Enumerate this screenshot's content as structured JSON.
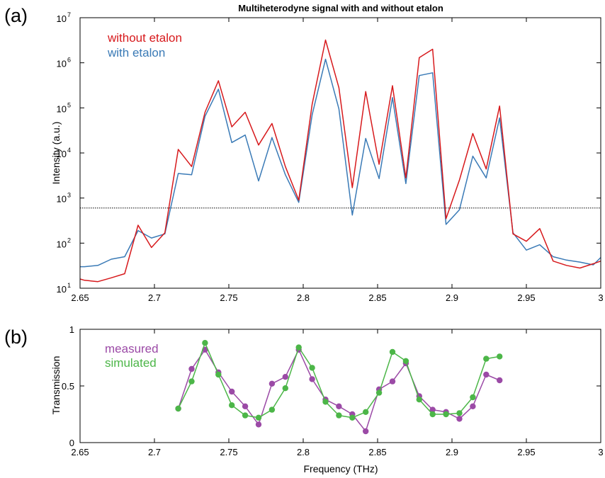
{
  "panel_labels": [
    "(a)",
    "(b)"
  ],
  "colors": {
    "without_etalon": "#d7191c",
    "with_etalon": "#3a7ab6",
    "measured": "#9b4aa6",
    "simulated": "#4cb648",
    "threshold": "#000000"
  },
  "chart_data": [
    {
      "type": "line",
      "title": "Multiheterodyne signal with and without etalon",
      "xlabel": "",
      "ylabel": "Intensity (a.u.)",
      "xlim": [
        2.65,
        3
      ],
      "ylim": [
        10,
        10000000
      ],
      "yscale": "log",
      "x_ticks": [
        "2.65",
        "2.7",
        "2.75",
        "2.8",
        "2.85",
        "2.9",
        "2.95",
        "3"
      ],
      "y_ticks": [
        {
          "base": "10",
          "exp": "1"
        },
        {
          "base": "10",
          "exp": "2"
        },
        {
          "base": "10",
          "exp": "3"
        },
        {
          "base": "10",
          "exp": "4"
        },
        {
          "base": "10",
          "exp": "5"
        },
        {
          "base": "10",
          "exp": "6"
        },
        {
          "base": "10",
          "exp": "7"
        }
      ],
      "legend_position": "top-left",
      "threshold_line": 600,
      "series": [
        {
          "name": "without etalon",
          "color_key": "without_etalon",
          "x": [
            2.65,
            2.653,
            2.662,
            2.671,
            2.68,
            2.689,
            2.698,
            2.707,
            2.716,
            2.725,
            2.734,
            2.743,
            2.752,
            2.761,
            2.77,
            2.779,
            2.788,
            2.797,
            2.806,
            2.815,
            2.824,
            2.833,
            2.842,
            2.851,
            2.86,
            2.869,
            2.878,
            2.887,
            2.896,
            2.905,
            2.914,
            2.923,
            2.932,
            2.941,
            2.95,
            2.959,
            2.968,
            2.977,
            2.986,
            2.995,
            3.0
          ],
          "y": [
            16,
            15,
            14,
            17,
            21,
            250,
            80,
            170,
            12000,
            5000,
            80000,
            400000,
            38000,
            80000,
            15000,
            45000,
            5000,
            900,
            120000,
            3200000,
            280000,
            1700,
            230000,
            5600,
            310000,
            2800,
            1300000,
            2000000,
            350,
            2500,
            27000,
            4400,
            110000,
            160,
            110,
            210,
            40,
            32,
            28,
            35,
            40
          ]
        },
        {
          "name": "with etalon",
          "color_key": "with_etalon",
          "x": [
            2.65,
            2.653,
            2.662,
            2.671,
            2.68,
            2.689,
            2.698,
            2.707,
            2.716,
            2.725,
            2.734,
            2.743,
            2.752,
            2.761,
            2.77,
            2.779,
            2.788,
            2.797,
            2.806,
            2.815,
            2.824,
            2.833,
            2.842,
            2.851,
            2.86,
            2.869,
            2.878,
            2.887,
            2.896,
            2.905,
            2.914,
            2.923,
            2.932,
            2.941,
            2.95,
            2.959,
            2.968,
            2.977,
            2.986,
            2.995,
            3.0
          ],
          "y": [
            30,
            30,
            32,
            44,
            50,
            190,
            130,
            160,
            3500,
            3300,
            65000,
            260000,
            17000,
            25000,
            2400,
            22000,
            3300,
            800,
            70000,
            1200000,
            95000,
            420,
            21000,
            2700,
            170000,
            2100,
            520000,
            600000,
            260,
            550,
            8500,
            2800,
            60000,
            170,
            70,
            92,
            50,
            42,
            38,
            33,
            48
          ]
        }
      ]
    },
    {
      "type": "line",
      "title": "",
      "xlabel": "Frequency (THz)",
      "ylabel": "Transmission",
      "xlim": [
        2.65,
        3
      ],
      "ylim": [
        0,
        1
      ],
      "x_ticks": [
        "2.65",
        "2.7",
        "2.75",
        "2.8",
        "2.85",
        "2.9",
        "2.95",
        "3"
      ],
      "y_ticks": [
        "0",
        "0.5",
        "1"
      ],
      "legend_position": "top-left",
      "series": [
        {
          "name": "measured",
          "color_key": "measured",
          "x": [
            2.716,
            2.725,
            2.734,
            2.743,
            2.752,
            2.761,
            2.77,
            2.779,
            2.788,
            2.797,
            2.806,
            2.815,
            2.824,
            2.833,
            2.842,
            2.851,
            2.86,
            2.869,
            2.878,
            2.887,
            2.896,
            2.905,
            2.914,
            2.923,
            2.932
          ],
          "y": [
            0.3,
            0.65,
            0.82,
            0.62,
            0.45,
            0.32,
            0.16,
            0.52,
            0.58,
            0.82,
            0.56,
            0.38,
            0.32,
            0.25,
            0.1,
            0.47,
            0.54,
            0.7,
            0.41,
            0.29,
            0.27,
            0.21,
            0.32,
            0.6,
            0.55
          ]
        },
        {
          "name": "simulated",
          "color_key": "simulated",
          "x": [
            2.716,
            2.725,
            2.734,
            2.743,
            2.752,
            2.761,
            2.77,
            2.779,
            2.788,
            2.797,
            2.806,
            2.815,
            2.824,
            2.833,
            2.842,
            2.851,
            2.86,
            2.869,
            2.878,
            2.887,
            2.896,
            2.905,
            2.914,
            2.923,
            2.932
          ],
          "y": [
            0.3,
            0.54,
            0.88,
            0.6,
            0.33,
            0.24,
            0.22,
            0.29,
            0.48,
            0.84,
            0.66,
            0.36,
            0.24,
            0.22,
            0.27,
            0.44,
            0.8,
            0.72,
            0.38,
            0.25,
            0.25,
            0.26,
            0.4,
            0.74,
            0.76
          ]
        }
      ]
    }
  ]
}
